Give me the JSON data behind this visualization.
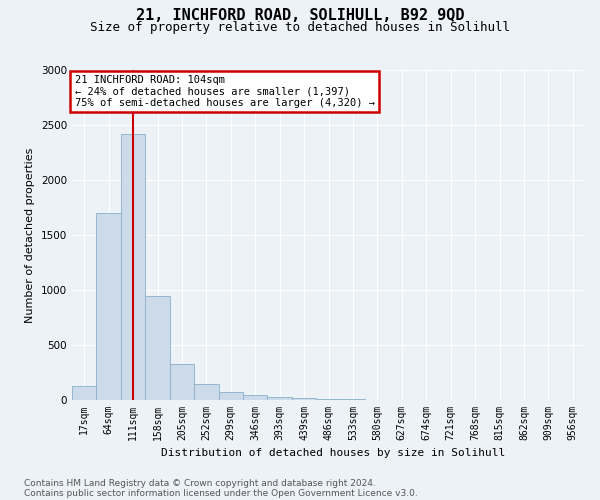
{
  "title": "21, INCHFORD ROAD, SOLIHULL, B92 9QD",
  "subtitle": "Size of property relative to detached houses in Solihull",
  "xlabel": "Distribution of detached houses by size in Solihull",
  "ylabel": "Number of detached properties",
  "categories": [
    "17sqm",
    "64sqm",
    "111sqm",
    "158sqm",
    "205sqm",
    "252sqm",
    "299sqm",
    "346sqm",
    "393sqm",
    "439sqm",
    "486sqm",
    "533sqm",
    "580sqm",
    "627sqm",
    "674sqm",
    "721sqm",
    "768sqm",
    "815sqm",
    "862sqm",
    "909sqm",
    "956sqm"
  ],
  "values": [
    130,
    1700,
    2420,
    950,
    330,
    150,
    75,
    50,
    30,
    20,
    10,
    5,
    0,
    0,
    0,
    0,
    0,
    0,
    0,
    0,
    0
  ],
  "bar_color": "#ccdaea",
  "bar_edge_color": "#8ab0cc",
  "property_line_x": 2.0,
  "annotation_text": "21 INCHFORD ROAD: 104sqm\n← 24% of detached houses are smaller (1,397)\n75% of semi-detached houses are larger (4,320) →",
  "annotation_box_facecolor": "#ffffff",
  "annotation_box_edgecolor": "#cc0000",
  "ylim": [
    0,
    3000
  ],
  "yticks": [
    0,
    500,
    1000,
    1500,
    2000,
    2500,
    3000
  ],
  "bg_color": "#edf2f7",
  "grid_color": "#ffffff",
  "footer1": "Contains HM Land Registry data © Crown copyright and database right 2024.",
  "footer2": "Contains public sector information licensed under the Open Government Licence v3.0.",
  "title_fontsize": 11,
  "subtitle_fontsize": 9,
  "axis_label_fontsize": 8,
  "tick_fontsize": 7,
  "annot_fontsize": 7.5,
  "footer_fontsize": 6.5
}
